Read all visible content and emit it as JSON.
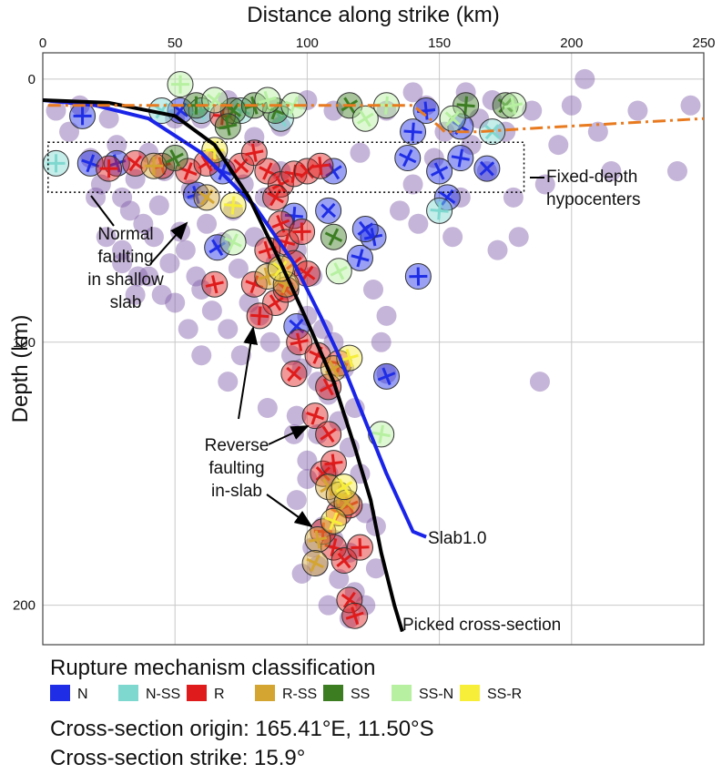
{
  "chart_data": {
    "type": "scatter",
    "xlabel": "Distance along strike (km)",
    "ylabel": "Depth (km)",
    "xlim": [
      0,
      250
    ],
    "ylim": [
      215,
      -10
    ],
    "x_ticks": [
      0,
      50,
      100,
      150,
      200,
      250
    ],
    "y_ticks": [
      0,
      100,
      200
    ],
    "grid": true,
    "legend_title": "Rupture mechanism classification",
    "legend_position": "bottom",
    "classes": [
      {
        "code": "N",
        "color": "#1f2ee6"
      },
      {
        "code": "N-SS",
        "color": "#7fd8d0"
      },
      {
        "code": "R",
        "color": "#e01b1b"
      },
      {
        "code": "R-SS",
        "color": "#d4a531"
      },
      {
        "code": "SS",
        "color": "#3c7d22"
      },
      {
        "code": "SS-N",
        "color": "#b6f0a0"
      },
      {
        "code": "SS-R",
        "color": "#f7ee3a"
      }
    ],
    "unclassified_color": "#7f5aa8",
    "series": [
      {
        "type": "unclassified",
        "points": [
          [
            5,
            12
          ],
          [
            10,
            20
          ],
          [
            14,
            10
          ],
          [
            18,
            30
          ],
          [
            22,
            40
          ],
          [
            25,
            15
          ],
          [
            28,
            25
          ],
          [
            30,
            45
          ],
          [
            33,
            50
          ],
          [
            35,
            38
          ],
          [
            38,
            55
          ],
          [
            40,
            28
          ],
          [
            42,
            60
          ],
          [
            44,
            48
          ],
          [
            46,
            35
          ],
          [
            48,
            70
          ],
          [
            50,
            15
          ],
          [
            52,
            58
          ],
          [
            54,
            65
          ],
          [
            56,
            42
          ],
          [
            58,
            75
          ],
          [
            60,
            80
          ],
          [
            62,
            55
          ],
          [
            64,
            88
          ],
          [
            66,
            30
          ],
          [
            68,
            62
          ],
          [
            70,
            95
          ],
          [
            72,
            50
          ],
          [
            74,
            72
          ],
          [
            76,
            40
          ],
          [
            78,
            85
          ],
          [
            80,
            60
          ],
          [
            82,
            90
          ],
          [
            84,
            45
          ],
          [
            86,
            100
          ],
          [
            88,
            70
          ],
          [
            90,
            35
          ],
          [
            92,
            80
          ],
          [
            94,
            105
          ],
          [
            96,
            65
          ],
          [
            98,
            110
          ],
          [
            100,
            90
          ],
          [
            102,
            75
          ],
          [
            104,
            115
          ],
          [
            106,
            95
          ],
          [
            108,
            120
          ],
          [
            110,
            100
          ],
          [
            112,
            130
          ],
          [
            114,
            110
          ],
          [
            116,
            140
          ],
          [
            118,
            125
          ],
          [
            120,
            150
          ],
          [
            108,
            150
          ],
          [
            112,
            160
          ],
          [
            106,
            170
          ],
          [
            110,
            175
          ],
          [
            116,
            180
          ],
          [
            104,
            185
          ],
          [
            112,
            190
          ],
          [
            118,
            195
          ],
          [
            108,
            200
          ],
          [
            122,
            165
          ],
          [
            126,
            170
          ],
          [
            104,
            135
          ],
          [
            100,
            145
          ],
          [
            96,
            128
          ],
          [
            128,
            100
          ],
          [
            130,
            112
          ],
          [
            135,
            50
          ],
          [
            140,
            40
          ],
          [
            142,
            55
          ],
          [
            145,
            10
          ],
          [
            148,
            30
          ],
          [
            152,
            20
          ],
          [
            155,
            60
          ],
          [
            158,
            45
          ],
          [
            160,
            5
          ],
          [
            162,
            25
          ],
          [
            165,
            15
          ],
          [
            168,
            35
          ],
          [
            170,
            8
          ],
          [
            172,
            65
          ],
          [
            175,
            20
          ],
          [
            178,
            45
          ],
          [
            180,
            60
          ],
          [
            185,
            12
          ],
          [
            190,
            40
          ],
          [
            195,
            25
          ],
          [
            200,
            10
          ],
          [
            205,
            0
          ],
          [
            210,
            20
          ],
          [
            215,
            35
          ],
          [
            225,
            12
          ],
          [
            240,
            35
          ],
          [
            245,
            10
          ],
          [
            188,
            115
          ],
          [
            130,
            90
          ],
          [
            125,
            80
          ],
          [
            60,
            15
          ],
          [
            70,
            8
          ],
          [
            80,
            22
          ],
          [
            90,
            18
          ],
          [
            100,
            8
          ],
          [
            110,
            12
          ],
          [
            120,
            28
          ],
          [
            130,
            12
          ],
          [
            140,
            5
          ],
          [
            20,
            45
          ],
          [
            30,
            65
          ],
          [
            40,
            75
          ],
          [
            50,
            85
          ],
          [
            55,
            95
          ],
          [
            60,
            105
          ],
          [
            45,
            82
          ],
          [
            35,
            82
          ],
          [
            70,
            115
          ],
          [
            75,
            105
          ],
          [
            85,
            125
          ],
          [
            95,
            135
          ],
          [
            100,
            152
          ],
          [
            96,
            160
          ],
          [
            102,
            178
          ],
          [
            98,
            188
          ],
          [
            116,
            205
          ],
          [
            122,
            200
          ],
          [
            126,
            186
          ],
          [
            30,
            70
          ],
          [
            36,
            75
          ],
          [
            24,
            60
          ]
        ]
      },
      {
        "type": "N",
        "points": [
          [
            15,
            14
          ],
          [
            52,
            12
          ],
          [
            58,
            44
          ],
          [
            68,
            35
          ],
          [
            66,
            64
          ],
          [
            95,
            52
          ],
          [
            108,
            50
          ],
          [
            125,
            60
          ],
          [
            138,
            30
          ],
          [
            150,
            35
          ],
          [
            158,
            30
          ],
          [
            168,
            34
          ],
          [
            145,
            12
          ],
          [
            158,
            18
          ],
          [
            130,
            113
          ],
          [
            120,
            68
          ],
          [
            122,
            57
          ],
          [
            142,
            75
          ],
          [
            153,
            45
          ],
          [
            28,
            32
          ],
          [
            18,
            32
          ],
          [
            110,
            35
          ],
          [
            140,
            20
          ],
          [
            96,
            94
          ]
        ]
      },
      {
        "type": "N-SS",
        "points": [
          [
            5,
            32
          ],
          [
            45,
            12
          ],
          [
            60,
            12
          ],
          [
            75,
            12
          ],
          [
            90,
            15
          ],
          [
            150,
            50
          ],
          [
            170,
            20
          ]
        ]
      },
      {
        "type": "R",
        "points": [
          [
            25,
            34
          ],
          [
            35,
            32
          ],
          [
            45,
            33
          ],
          [
            55,
            35
          ],
          [
            62,
            32
          ],
          [
            68,
            14
          ],
          [
            75,
            33
          ],
          [
            80,
            28
          ],
          [
            85,
            35
          ],
          [
            90,
            40
          ],
          [
            95,
            36
          ],
          [
            100,
            35
          ],
          [
            105,
            33
          ],
          [
            88,
            45
          ],
          [
            90,
            55
          ],
          [
            92,
            62
          ],
          [
            95,
            70
          ],
          [
            98,
            58
          ],
          [
            100,
            74
          ],
          [
            85,
            65
          ],
          [
            80,
            78
          ],
          [
            88,
            85
          ],
          [
            82,
            90
          ],
          [
            92,
            80
          ],
          [
            97,
            100
          ],
          [
            104,
            105
          ],
          [
            108,
            117
          ],
          [
            112,
            108
          ],
          [
            106,
            150
          ],
          [
            110,
            146
          ],
          [
            112,
            165
          ],
          [
            116,
            162
          ],
          [
            110,
            178
          ],
          [
            114,
            183
          ],
          [
            120,
            178
          ],
          [
            116,
            198
          ],
          [
            118,
            204
          ],
          [
            103,
            128
          ],
          [
            108,
            135
          ],
          [
            106,
            172
          ],
          [
            95,
            112
          ],
          [
            65,
            78
          ]
        ]
      },
      {
        "type": "R-SS",
        "points": [
          [
            42,
            33
          ],
          [
            62,
            45
          ],
          [
            85,
            75
          ],
          [
            92,
            78
          ],
          [
            108,
            155
          ],
          [
            112,
            158
          ],
          [
            115,
            161
          ],
          [
            104,
            175
          ],
          [
            103,
            184
          ],
          [
            110,
            110
          ]
        ]
      },
      {
        "type": "SS",
        "points": [
          [
            58,
            10
          ],
          [
            72,
            12
          ],
          [
            80,
            10
          ],
          [
            88,
            12
          ],
          [
            116,
            10
          ],
          [
            160,
            10
          ],
          [
            175,
            10
          ],
          [
            70,
            18
          ],
          [
            110,
            60
          ],
          [
            50,
            30
          ]
        ]
      },
      {
        "type": "SS-N",
        "points": [
          [
            52,
            2
          ],
          [
            65,
            8
          ],
          [
            85,
            8
          ],
          [
            95,
            10
          ],
          [
            122,
            15
          ],
          [
            130,
            10
          ],
          [
            155,
            15
          ],
          [
            178,
            10
          ],
          [
            72,
            62
          ],
          [
            112,
            73
          ],
          [
            128,
            135
          ]
        ]
      },
      {
        "type": "SS-R",
        "points": [
          [
            65,
            27
          ],
          [
            90,
            72
          ],
          [
            116,
            106
          ],
          [
            110,
            168
          ],
          [
            114,
            155
          ],
          [
            72,
            48
          ]
        ]
      }
    ],
    "lines": [
      {
        "name": "Slab1.0",
        "color": "#1a23e8",
        "points": [
          [
            0,
            8
          ],
          [
            20,
            10
          ],
          [
            40,
            15
          ],
          [
            60,
            28
          ],
          [
            80,
            48
          ],
          [
            95,
            70
          ],
          [
            105,
            90
          ],
          [
            112,
            105
          ],
          [
            120,
            125
          ],
          [
            130,
            150
          ],
          [
            140,
            172
          ],
          [
            145,
            174
          ]
        ]
      },
      {
        "name": "Picked cross-section",
        "color": "#000000",
        "points": [
          [
            0,
            8
          ],
          [
            25,
            9
          ],
          [
            50,
            14
          ],
          [
            65,
            25
          ],
          [
            78,
            45
          ],
          [
            90,
            70
          ],
          [
            100,
            92
          ],
          [
            110,
            115
          ],
          [
            118,
            140
          ],
          [
            124,
            160
          ],
          [
            128,
            180
          ],
          [
            133,
            200
          ],
          [
            136,
            210
          ]
        ]
      },
      {
        "name": "",
        "color": "#e87a1f",
        "dashed": true,
        "points": [
          [
            2,
            10
          ],
          [
            100,
            10
          ],
          [
            140,
            10
          ],
          [
            150,
            18
          ],
          [
            152,
            20
          ],
          [
            165,
            20
          ],
          [
            180,
            19
          ],
          [
            250,
            15
          ]
        ]
      }
    ],
    "box": {
      "x": [
        2,
        182
      ],
      "y": [
        24,
        43
      ]
    },
    "annotations": [
      {
        "text": [
          "Fixed-depth",
          "hypocenters"
        ]
      },
      {
        "text": [
          "Normal",
          "faulting",
          "in shallow",
          "slab"
        ]
      },
      {
        "text": [
          "Reverse",
          "faulting",
          "in-slab"
        ]
      },
      {
        "text": [
          "Slab1.0"
        ]
      },
      {
        "text": [
          "Picked cross-section"
        ]
      }
    ]
  },
  "footer": {
    "origin": "Cross-section origin: 165.41°E, 11.50°S",
    "strike": "Cross-section strike: 15.9°"
  }
}
